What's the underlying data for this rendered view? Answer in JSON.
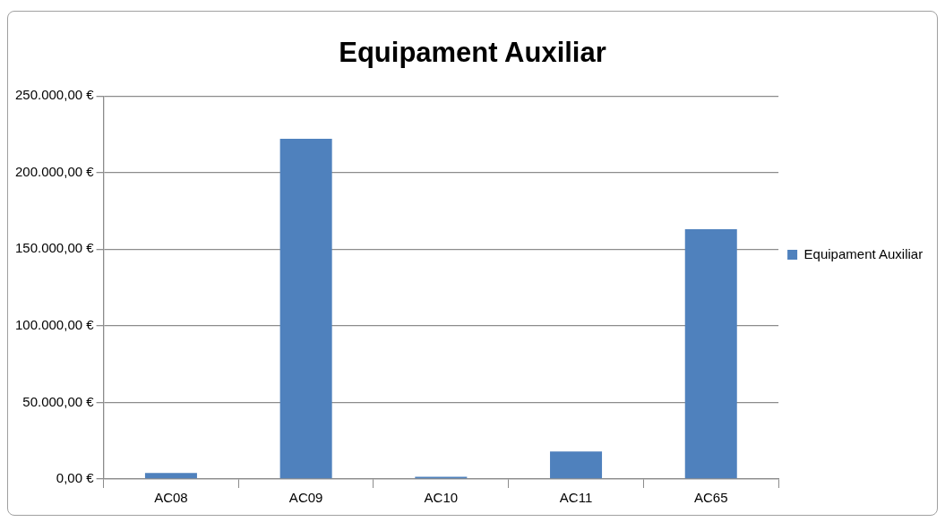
{
  "chart_data": {
    "type": "bar",
    "title": "Equipament Auxiliar",
    "categories": [
      "AC08",
      "AC09",
      "AC10",
      "AC11",
      "AC65"
    ],
    "series": [
      {
        "name": "Equipament Auxiliar",
        "color": "#4f81bd",
        "values": [
          4000,
          222000,
          1500,
          18000,
          163000
        ]
      }
    ],
    "ylim": [
      0,
      250000
    ],
    "yticks": [
      {
        "value": 0,
        "label": "0,00 €"
      },
      {
        "value": 50000,
        "label": "50.000,00 €"
      },
      {
        "value": 100000,
        "label": "100.000,00 €"
      },
      {
        "value": 150000,
        "label": "150.000,00 €"
      },
      {
        "value": 200000,
        "label": "200.000,00 €"
      },
      {
        "value": 250000,
        "label": "250.000,00 €"
      }
    ],
    "grid": "y",
    "legend": "right"
  }
}
